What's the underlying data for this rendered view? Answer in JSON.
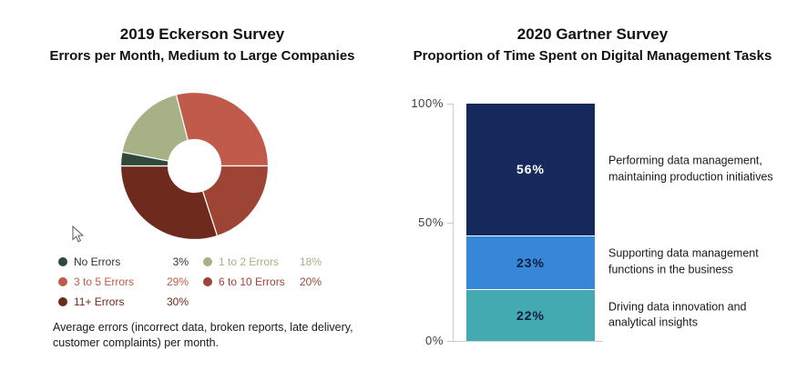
{
  "chart_data": [
    {
      "type": "pie",
      "donut": true,
      "title": "2019 Eckerson Survey",
      "subtitle": "Errors per Month, Medium to Large Companies",
      "caption": "Average errors (incorrect data, broken reports, late delivery, customer complaints) per month.",
      "start_angle_deg": -14.4,
      "draw_start_index": 2,
      "legend_position": "bottom",
      "slices": [
        {
          "label": "No Errors",
          "value": 3,
          "pct_label": "3%",
          "color": "#31493a",
          "text_color": "#333333"
        },
        {
          "label": "1 to 2 Errors",
          "value": 18,
          "pct_label": "18%",
          "color": "#a6b286",
          "text_color": "#a6b286"
        },
        {
          "label": "3 to 5 Errors",
          "value": 29,
          "pct_label": "29%",
          "color": "#c05b4c",
          "text_color": "#c05b4c"
        },
        {
          "label": "6 to 10 Errors",
          "value": 20,
          "pct_label": "20%",
          "color": "#9e4435",
          "text_color": "#9e4435"
        },
        {
          "label": "11+ Errors",
          "value": 30,
          "pct_label": "30%",
          "color": "#6e2b1d",
          "text_color": "#6e2b1d"
        }
      ]
    },
    {
      "type": "bar",
      "stacked": true,
      "title": "2020 Gartner Survey",
      "subtitle": "Proportion of Time Spent on Digital Management Tasks",
      "ylim": [
        0,
        100
      ],
      "grid": false,
      "y_ticks": [
        {
          "label": "100%",
          "value": 100
        },
        {
          "label": "50%",
          "value": 50
        },
        {
          "label": "0%",
          "value": 0
        }
      ],
      "segments": [
        {
          "value": 56,
          "label": "56%",
          "color": "#16295c",
          "label_color": "#ffffff",
          "annotation": "Performing data management, maintaining production initiatives"
        },
        {
          "value": 23,
          "label": "23%",
          "color": "#3687d7",
          "label_color": "#101c3d",
          "annotation": "Supporting data management functions in the business"
        },
        {
          "value": 22,
          "label": "22%",
          "color": "#44aab2",
          "label_color": "#101c3d",
          "annotation": "Driving data innovation and analytical insights"
        }
      ]
    }
  ]
}
